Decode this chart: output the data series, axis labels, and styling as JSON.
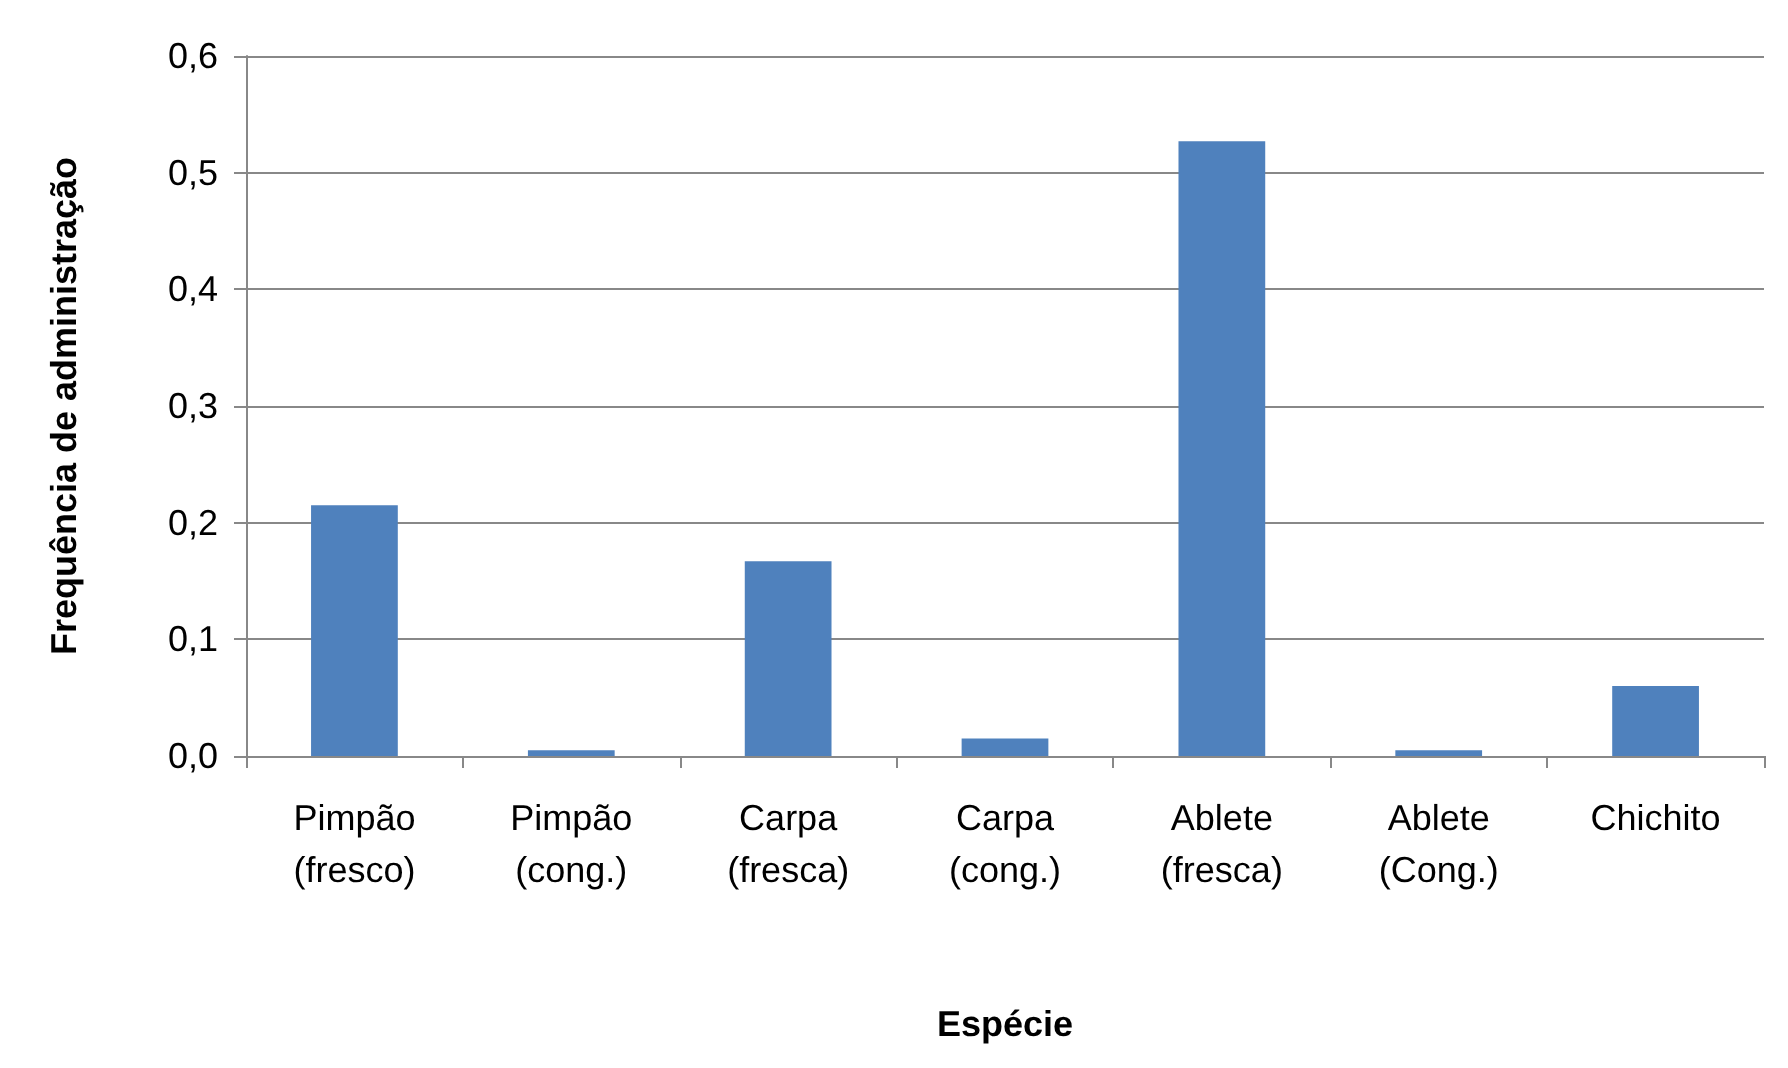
{
  "chart_data": {
    "type": "bar",
    "xlabel": "Espécie",
    "ylabel": "Frequência de administração",
    "categories": [
      "Pimpão\n(fresco)",
      "Pimpão\n(cong.)",
      "Carpa\n(fresca)",
      "Carpa\n(cong.)",
      "Ablete\n(fresca)",
      "Ablete\n(Cong.)",
      "Chichito"
    ],
    "values": [
      0.215,
      0.005,
      0.167,
      0.015,
      0.527,
      0.005,
      0.06
    ],
    "color": "#4f81bd",
    "ylim": [
      0,
      0.6
    ],
    "yticks": [
      {
        "value": 0,
        "label": "0,0"
      },
      {
        "value": 0.1,
        "label": "0,1"
      },
      {
        "value": 0.2,
        "label": "0,2"
      },
      {
        "value": 0.3,
        "label": "0,3"
      },
      {
        "value": 0.4,
        "label": "0,4"
      },
      {
        "value": 0.5,
        "label": "0,5"
      },
      {
        "value": 0.6,
        "label": "0,6"
      }
    ],
    "grid": "y"
  }
}
